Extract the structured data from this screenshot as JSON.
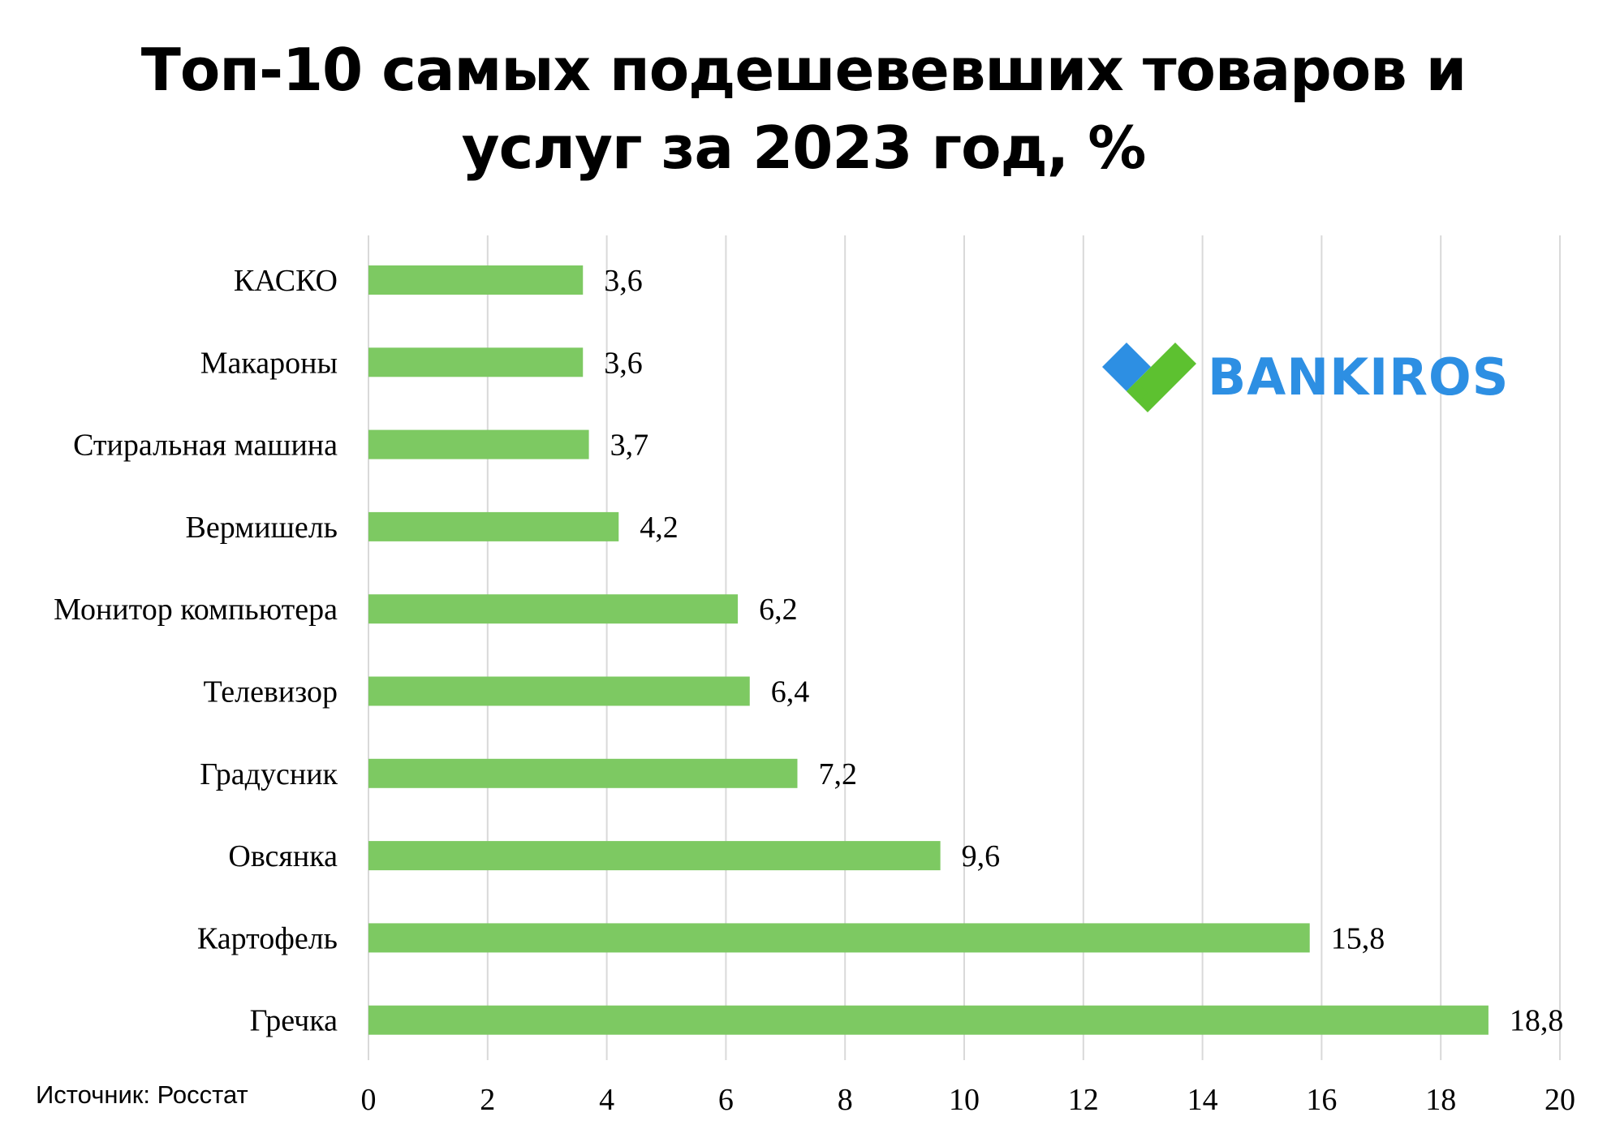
{
  "title_lines": [
    "Топ-10 самых подешевевших товаров и",
    "услуг за 2023 год, %"
  ],
  "source": "Источник: Росстат",
  "logo": {
    "text": "BANKIROS",
    "icon": "heart-check-icon",
    "colors": {
      "blue": "#2d8fe3",
      "green": "#5dc130"
    }
  },
  "chart_data": {
    "type": "bar",
    "orientation": "horizontal",
    "title": "Топ-10 самых подешевевших товаров и услуг за 2023 год, %",
    "categories": [
      "КАСКО",
      "Макароны",
      "Стиральная машина",
      "Вермишель",
      "Монитор компьютера",
      "Телевизор",
      "Градусник",
      "Овсянка",
      "Картофель",
      "Гречка"
    ],
    "values": [
      3.6,
      3.6,
      3.7,
      4.2,
      6.2,
      6.4,
      7.2,
      9.6,
      15.8,
      18.8
    ],
    "value_labels": [
      "3,6",
      "3,6",
      "3,7",
      "4,2",
      "6,2",
      "6,4",
      "7,2",
      "9,6",
      "15,8",
      "18,8"
    ],
    "xlim": [
      0,
      20
    ],
    "xticks": [
      0,
      2,
      4,
      6,
      8,
      10,
      12,
      14,
      16,
      18,
      20
    ],
    "grid": "vertical",
    "bar_color": "#7dc962",
    "grid_color": "#d9d9d9",
    "legend": "none"
  }
}
